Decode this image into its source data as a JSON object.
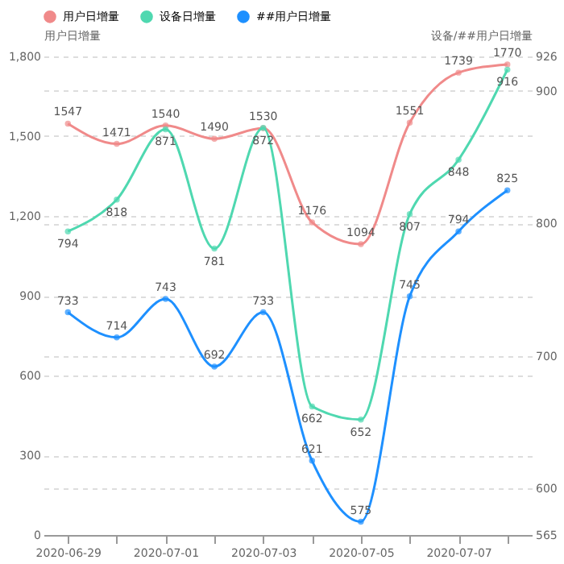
{
  "chart_data": {
    "type": "line",
    "categories": [
      "2020-06-29",
      null,
      "2020-07-01",
      null,
      "2020-07-03",
      null,
      "2020-07-05",
      null,
      "2020-07-07",
      null
    ],
    "ylabel": "用户日增量",
    "y2label": "设备/##用户日增量",
    "ylim": [
      0,
      1800
    ],
    "yticks": [
      0,
      300,
      600,
      900,
      {
        "value": 1200,
        "label": "1,200"
      },
      {
        "value": 1500,
        "label": "1,500"
      },
      {
        "value": 1800,
        "label": "1,800"
      }
    ],
    "y2lim": [
      565,
      926
    ],
    "y2ticks": [
      565,
      600,
      700,
      800,
      900,
      926
    ],
    "series": [
      {
        "name": "用户日增量",
        "color": "#f08a8a",
        "values": [
          1547,
          1471,
          1540,
          1490,
          1530,
          1176,
          1094,
          1551,
          1739,
          1770
        ]
      },
      {
        "name": "设备日增量",
        "color": "#4fd8b0",
        "axis": "y2",
        "values": [
          794,
          818,
          871,
          781,
          872,
          662,
          652,
          807,
          848,
          916
        ]
      },
      {
        "name": "##用户日增量",
        "color": "#1e90ff",
        "axis": "y2",
        "values": [
          733,
          714,
          743,
          692,
          733,
          621,
          575,
          745,
          794,
          825
        ]
      }
    ],
    "data_labels": true,
    "grid": true,
    "legend": "top",
    "marker": "circle",
    "line_style": "solid"
  }
}
